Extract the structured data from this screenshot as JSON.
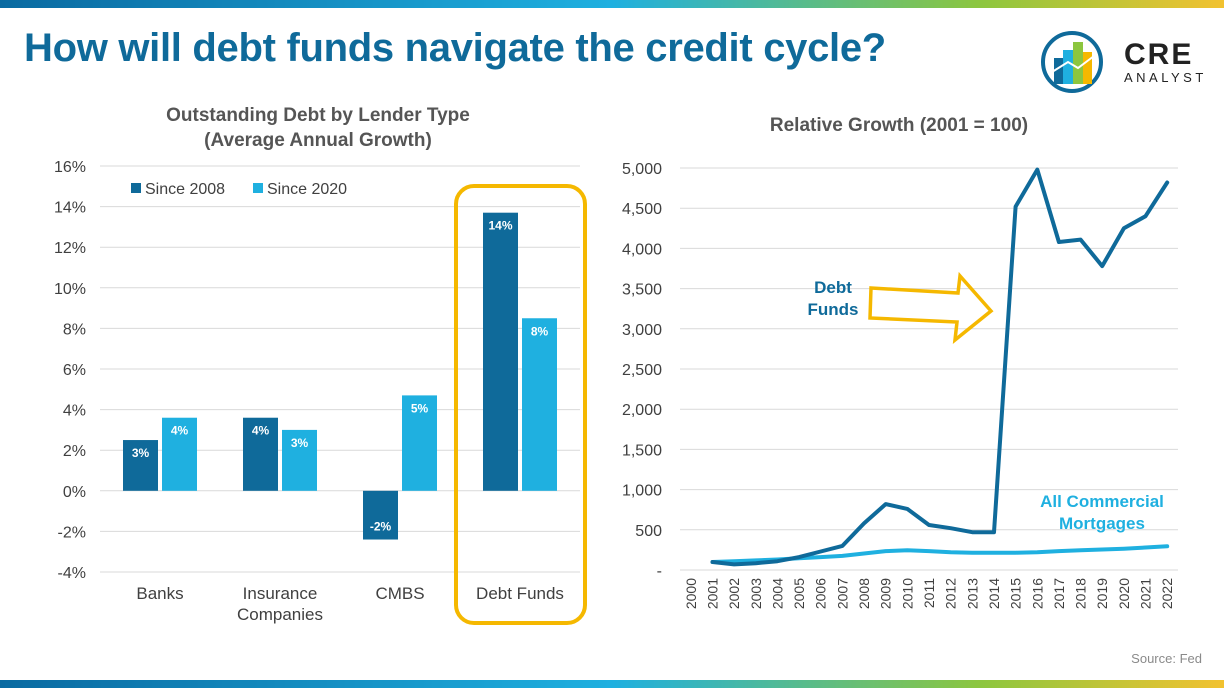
{
  "page": {
    "title": "How will debt funds navigate the credit cycle?",
    "logo_word": "CRE",
    "logo_sub": "ANALYST",
    "source": "Source: Fed"
  },
  "colors": {
    "dark_blue": "#0f6a9a",
    "light_blue": "#1fb0e0",
    "highlight": "#f5b800"
  },
  "chart_data": [
    {
      "type": "bar",
      "title_lines": [
        "Outstanding Debt by Lender Type",
        "(Average Annual Growth)"
      ],
      "categories": [
        [
          "Banks"
        ],
        [
          "Insurance",
          "Companies"
        ],
        [
          "CMBS"
        ],
        [
          "Debt Funds"
        ]
      ],
      "series": [
        {
          "name": "Since 2008",
          "values": [
            2.5,
            3.6,
            -2.4,
            13.7
          ],
          "labels": [
            "3%",
            "4%",
            "-2%",
            "14%"
          ],
          "color": "#0f6a9a"
        },
        {
          "name": "Since 2020",
          "values": [
            3.6,
            3.0,
            4.7,
            8.5
          ],
          "labels": [
            "4%",
            "3%",
            "5%",
            "8%"
          ],
          "color": "#1fb0e0"
        }
      ],
      "yticks": [
        "16%",
        "14%",
        "12%",
        "10%",
        "8%",
        "6%",
        "4%",
        "2%",
        "0%",
        "-2%",
        "-4%"
      ],
      "ylim": [
        -4,
        16
      ],
      "legend": "top-left",
      "highlight_category": "Debt Funds"
    },
    {
      "type": "line",
      "title": "Relative Growth (2001 = 100)",
      "x": [
        "2000",
        "2001",
        "2002",
        "2003",
        "2004",
        "2005",
        "2006",
        "2007",
        "2008",
        "2009",
        "2010",
        "2011",
        "2012",
        "2013",
        "2014",
        "2015",
        "2016",
        "2017",
        "2018",
        "2019",
        "2020",
        "2021",
        "2022"
      ],
      "series": [
        {
          "name": "Debt Funds",
          "label_lines": [
            "Debt",
            "Funds"
          ],
          "values": [
            null,
            100,
            70,
            85,
            110,
            160,
            230,
            300,
            580,
            820,
            760,
            560,
            520,
            470,
            470,
            4520,
            4980,
            4080,
            4110,
            3780,
            4250,
            4400,
            4820
          ],
          "color": "#0f6a9a"
        },
        {
          "name": "All Commercial Mortgages",
          "label_lines": [
            "All Commercial",
            "Mortgages"
          ],
          "values": [
            null,
            100,
            110,
            120,
            130,
            145,
            160,
            175,
            205,
            235,
            245,
            235,
            220,
            215,
            215,
            215,
            220,
            235,
            245,
            255,
            265,
            280,
            295
          ],
          "color": "#1fb0e0"
        }
      ],
      "yticks": [
        "5,000",
        "4,500",
        "4,000",
        "3,500",
        "3,000",
        "2,500",
        "2,000",
        "1,500",
        "1,000",
        "500",
        "-"
      ],
      "ylim": [
        0,
        5000
      ],
      "grid": true
    }
  ]
}
